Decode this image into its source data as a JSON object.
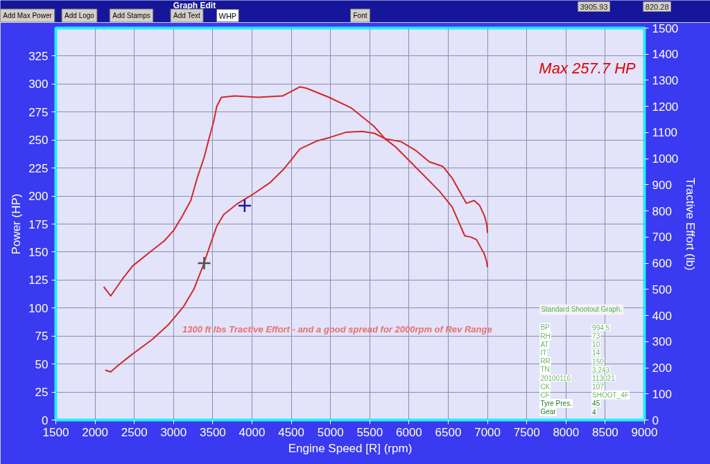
{
  "chart_data": {
    "type": "line",
    "xlabel": "Engine Speed [R] (rpm)",
    "ylabel": "Power (HP)",
    "y2label": "Tractive Effort (lb)",
    "xlim": [
      1500,
      9000
    ],
    "xticks": [
      1500,
      2000,
      2500,
      3000,
      3500,
      4000,
      4500,
      5000,
      5500,
      6000,
      6500,
      7000,
      7500,
      8000,
      8500,
      9000
    ],
    "ylim": [
      0,
      350
    ],
    "yticks": [
      0,
      25,
      50,
      75,
      100,
      125,
      150,
      175,
      200,
      225,
      250,
      275,
      300,
      325
    ],
    "y2lim": [
      0,
      1500
    ],
    "y2ticks": [
      0,
      100,
      200,
      300,
      400,
      500,
      600,
      700,
      800,
      900,
      1000,
      1100,
      1200,
      1300,
      1400,
      1500
    ],
    "grid": true,
    "series": [
      {
        "color": "#d02828",
        "x": [
          2130,
          2200,
          2290,
          2470,
          2730,
          2940,
          3130,
          3260,
          3380,
          3470,
          3550,
          3640,
          3820,
          4000,
          4230,
          4410,
          4610,
          4820,
          5000,
          5200,
          5400,
          5560,
          5700,
          5900,
          6080,
          6260,
          6430,
          6550,
          6730,
          6830,
          6900,
          6960,
          6990,
          7000
        ],
        "values": [
          44.5,
          43,
          48.5,
          58.5,
          72,
          85.5,
          101.5,
          117,
          138.5,
          157,
          173,
          183.5,
          193.5,
          201,
          212,
          224.5,
          242,
          249,
          252.5,
          257,
          257.7,
          256,
          251,
          248.5,
          241,
          230.5,
          226.5,
          216,
          193.5,
          196,
          191.5,
          182.5,
          175,
          167
        ]
      },
      {
        "color": "#d02828",
        "axis": "y2",
        "x": [
          2110,
          2200,
          2350,
          2480,
          2730,
          2880,
          3000,
          3110,
          3220,
          3300,
          3390,
          3450,
          3510,
          3550,
          3610,
          3780,
          4080,
          4390,
          4610,
          4690,
          4980,
          5260,
          5550,
          5700,
          5830,
          6110,
          6390,
          6550,
          6710,
          6790,
          6860,
          6960,
          6990,
          7000
        ],
        "values": [
          510,
          475,
          540,
          590,
          650,
          685,
          725,
          780,
          840,
          925,
          1005,
          1075,
          1140,
          1200,
          1235,
          1240,
          1235,
          1240,
          1275,
          1270,
          1235,
          1195,
          1125,
          1075,
          1045,
          960,
          875,
          815,
          705,
          700,
          690,
          635,
          605,
          585
        ]
      },
      {
        "type": "scatter",
        "marker": "cross",
        "color": "#1a1a9a",
        "axis": "y2",
        "x": [
          3905.93
        ],
        "values": [
          820.28
        ]
      },
      {
        "type": "scatter",
        "marker": "cross",
        "color": "#505050",
        "x": [
          3390
        ],
        "values": [
          140
        ]
      }
    ],
    "annotations": [
      "Graph Edit",
      "Add Max Power",
      "Add Logo",
      "Add Stamps",
      "Add Text",
      "WHP",
      "Font",
      "3905.93",
      "820.28",
      "Max 257.7 HP",
      "1300 ft lbs Tractive Effort - and a good spread for 2000rpm of Rev Range",
      "Standard Shootout Graph.",
      "BP",
      "994.5",
      "RH",
      "73",
      "AT",
      "10",
      "IT",
      "14",
      "RR",
      "150",
      "TN",
      "3.243",
      "20100116",
      "113021",
      "CK",
      "107",
      "CF",
      "SHOOT_4F",
      "Tyre Pres.",
      "45",
      "Gear",
      "4"
    ]
  }
}
